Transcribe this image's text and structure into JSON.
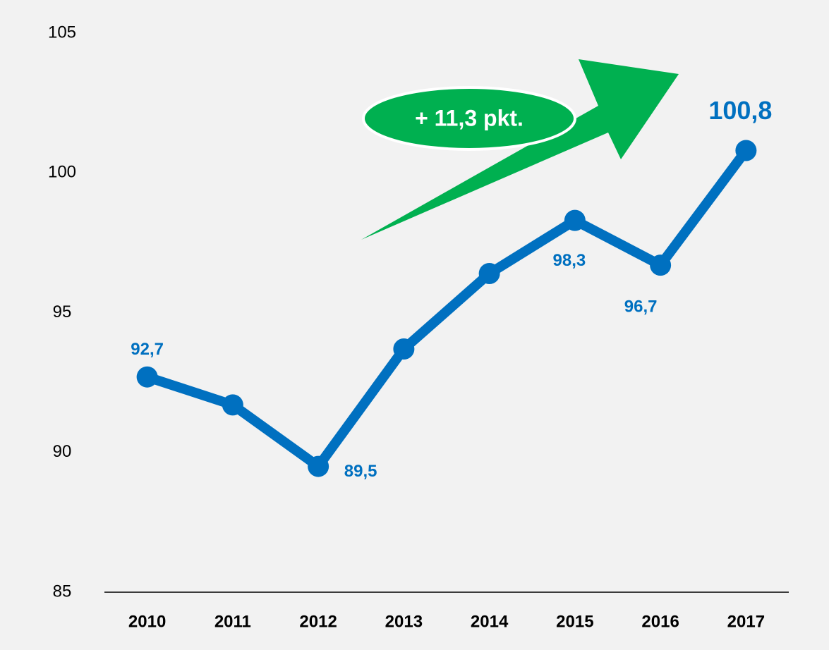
{
  "chart_data": {
    "type": "line",
    "categories": [
      "2010",
      "2011",
      "2012",
      "2013",
      "2014",
      "2015",
      "2016",
      "2017"
    ],
    "series": [
      {
        "color": "#0070c0",
        "values": [
          92.7,
          91.7,
          89.5,
          93.7,
          96.4,
          98.3,
          96.7,
          100.8
        ],
        "value_labels": [
          "92,7",
          null,
          "89,5",
          null,
          null,
          "98,3",
          "96,7",
          "100,8"
        ]
      }
    ],
    "ylim": [
      85,
      105
    ],
    "yticks": [
      85,
      90,
      95,
      100,
      105
    ],
    "annotation": "+ 11,3 pkt.",
    "annotation_color": "#00b050"
  }
}
